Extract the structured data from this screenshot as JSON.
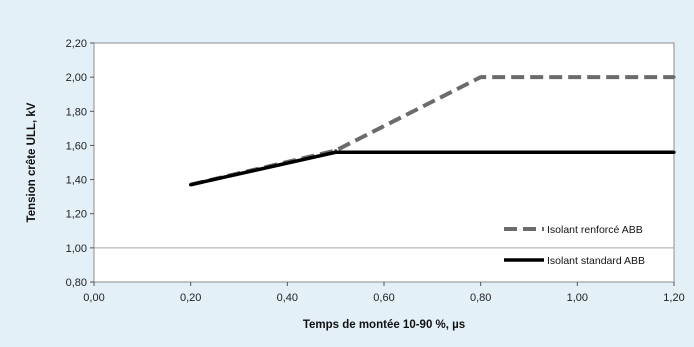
{
  "chart_data": {
    "type": "line",
    "xlabel": "Temps de montée 10-90 %, µs",
    "ylabel": "Tension crête ULL, kV",
    "xlim": [
      0.0,
      1.2
    ],
    "ylim": [
      0.8,
      2.2
    ],
    "x_ticks": [
      "0,00",
      "0,20",
      "0,40",
      "0,60",
      "0,80",
      "1,00",
      "1,20"
    ],
    "y_ticks": [
      "0,80",
      "1,00",
      "1,20",
      "1,40",
      "1,60",
      "1,80",
      "2,00",
      "2,20"
    ],
    "grid": "horizontal line at 1,00 only",
    "legend_position": "bottom-right inside plot",
    "series": [
      {
        "name": "Isolant renforcé ABB",
        "style": "dashed",
        "color": "#6b6b6b",
        "x": [
          0.2,
          0.5,
          0.8,
          1.2
        ],
        "y": [
          1.37,
          1.57,
          2.0,
          2.0
        ]
      },
      {
        "name": "Isolant standard ABB",
        "style": "solid",
        "color": "#000000",
        "x": [
          0.2,
          0.5,
          1.2
        ],
        "y": [
          1.37,
          1.56,
          1.56
        ]
      }
    ]
  },
  "colors": {
    "background": "#e3f0f8",
    "plot_area": "#ffffff",
    "gridline": "#a6a6a6"
  }
}
